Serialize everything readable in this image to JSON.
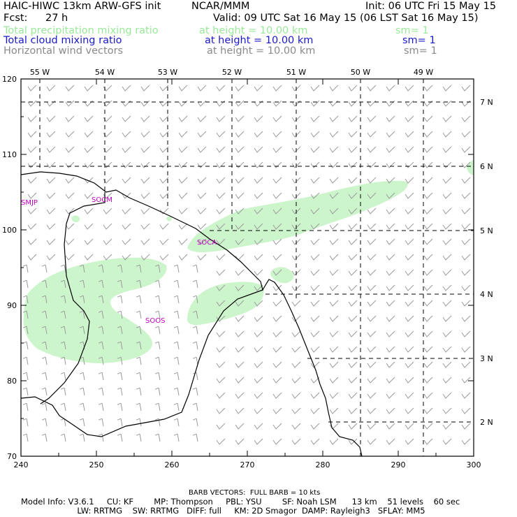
{
  "header": {
    "model_title": "HAIC-HIWC 13km ARW-GFS init",
    "org": "NCAR/MMM",
    "init": "Init: 06 UTC Fri 15 May 15",
    "fcst_label": "Fcst:",
    "fcst_value": "27 h",
    "valid": "Valid: 09 UTC Sat 16 May 15 (06 LST Sat 16 May 15)"
  },
  "fields": [
    {
      "name": "Total precipitation mixing ratio",
      "height": "at height = 10.00 km",
      "sm": "sm= 1",
      "color": "#9ae89a"
    },
    {
      "name": "Total cloud mixing ratio",
      "height": "at height = 10.00 km",
      "sm": "sm= 1",
      "color": "#1a1acc"
    },
    {
      "name": "Horizontal wind vectors",
      "height": "at height = 10.00 km",
      "sm": "sm= 1",
      "color": "#8a8a8a"
    }
  ],
  "map": {
    "x_ticks": [
      "240",
      "250",
      "260",
      "270",
      "280",
      "290",
      "300"
    ],
    "y_ticks": [
      "70",
      "80",
      "90",
      "100",
      "110",
      "120"
    ],
    "lon_labels": [
      "55 W",
      "54 W",
      "53 W",
      "52 W",
      "51 W",
      "50 W",
      "49 W"
    ],
    "lat_labels": [
      "7 N",
      "6 N",
      "5 N",
      "4 N",
      "3 N",
      "2 N"
    ],
    "stations": [
      "SMJP",
      "SOCM",
      "SOCA",
      "SOOS"
    ],
    "precip_color": "#ccf5cc"
  },
  "footer": {
    "barb": "BARB VECTORS:  FULL BARB = 10 kts",
    "line1": "Model Info: V3.6.1     CU: KF        MP: Thompson     PBL: YSU        SF: Noah LSM      13 km    51 levels    60 sec",
    "line2": "                      LW: RRTMG    SW: RRTMG   DIFF: full     KM: 2D Smagor  DAMP: Rayleigh3   SFLAY: MM5"
  }
}
